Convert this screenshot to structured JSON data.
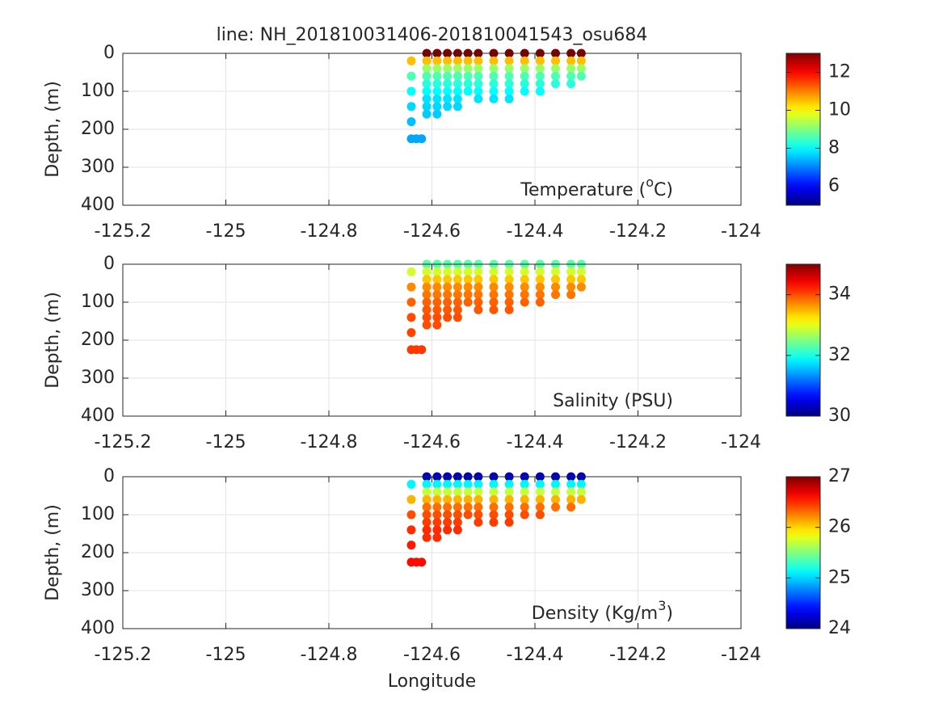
{
  "chart_data": [
    {
      "type": "scatter",
      "title": "line: NH_201810031406-201810041543_osu684",
      "ylabel": "Depth, (m)",
      "annotation": [
        "Temperature (",
        "o",
        "C)"
      ],
      "xlim": [
        -125.2,
        -124
      ],
      "xticks": [
        -125.2,
        -125,
        -124.8,
        -124.6,
        -124.4,
        -124.2,
        -124
      ],
      "ylim": [
        0,
        400
      ],
      "yticks": [
        0,
        100,
        200,
        300,
        400
      ],
      "yreverse": true,
      "grid": true,
      "colormap": "jet",
      "clim": [
        5,
        13
      ],
      "cticks": [
        6,
        8,
        10,
        12
      ],
      "x": [
        -124.64,
        -124.64,
        -124.64,
        -124.64,
        -124.64,
        -124.64,
        -124.63,
        -124.62,
        -124.61,
        -124.61,
        -124.61,
        -124.61,
        -124.61,
        -124.61,
        -124.61,
        -124.61,
        -124.61,
        -124.59,
        -124.59,
        -124.59,
        -124.59,
        -124.59,
        -124.59,
        -124.59,
        -124.59,
        -124.59,
        -124.57,
        -124.57,
        -124.57,
        -124.57,
        -124.57,
        -124.57,
        -124.57,
        -124.57,
        -124.55,
        -124.55,
        -124.55,
        -124.55,
        -124.55,
        -124.55,
        -124.55,
        -124.55,
        -124.53,
        -124.53,
        -124.53,
        -124.53,
        -124.53,
        -124.53,
        -124.51,
        -124.51,
        -124.51,
        -124.51,
        -124.51,
        -124.51,
        -124.51,
        -124.48,
        -124.48,
        -124.48,
        -124.48,
        -124.48,
        -124.48,
        -124.48,
        -124.45,
        -124.45,
        -124.45,
        -124.45,
        -124.45,
        -124.45,
        -124.45,
        -124.42,
        -124.42,
        -124.42,
        -124.42,
        -124.42,
        -124.42,
        -124.39,
        -124.39,
        -124.39,
        -124.39,
        -124.39,
        -124.39,
        -124.36,
        -124.36,
        -124.36,
        -124.36,
        -124.36,
        -124.33,
        -124.33,
        -124.33,
        -124.33,
        -124.33,
        -124.31,
        -124.31,
        -124.31,
        -124.31
      ],
      "y": [
        20,
        60,
        100,
        140,
        180,
        225,
        225,
        225,
        0,
        20,
        40,
        60,
        80,
        100,
        120,
        140,
        160,
        0,
        20,
        40,
        60,
        80,
        100,
        120,
        140,
        160,
        0,
        20,
        40,
        60,
        80,
        100,
        120,
        140,
        0,
        20,
        40,
        60,
        80,
        100,
        120,
        140,
        0,
        20,
        40,
        60,
        80,
        100,
        0,
        20,
        40,
        60,
        80,
        100,
        120,
        0,
        20,
        40,
        60,
        80,
        100,
        120,
        0,
        20,
        40,
        60,
        80,
        100,
        120,
        0,
        20,
        40,
        60,
        80,
        100,
        0,
        20,
        40,
        60,
        80,
        100,
        0,
        20,
        40,
        60,
        80,
        0,
        20,
        40,
        60,
        80,
        0,
        20,
        40,
        60
      ],
      "values": [
        10.5,
        8.6,
        8.0,
        7.7,
        7.5,
        7.3,
        7.3,
        7.3,
        13,
        10.5,
        9.2,
        8.6,
        8.3,
        8.0,
        7.8,
        7.7,
        7.6,
        13,
        10.5,
        9.2,
        8.6,
        8.3,
        8.0,
        7.8,
        7.7,
        7.6,
        13,
        10.5,
        9.2,
        8.6,
        8.3,
        8.0,
        7.8,
        7.7,
        13,
        10.5,
        9.2,
        8.6,
        8.3,
        8.0,
        7.8,
        7.7,
        13,
        10.5,
        9.2,
        8.6,
        8.3,
        8.0,
        13,
        10.5,
        9.2,
        8.6,
        8.3,
        8.0,
        7.8,
        13,
        10.5,
        9.2,
        8.6,
        8.3,
        8.0,
        7.8,
        13,
        10.5,
        9.2,
        8.6,
        8.3,
        8.0,
        7.8,
        13,
        10.5,
        9.2,
        8.6,
        8.3,
        8.0,
        13,
        10.5,
        9.2,
        8.6,
        8.3,
        8.0,
        13,
        10.5,
        9.2,
        8.6,
        8.3,
        13,
        10.5,
        9.2,
        8.6,
        8.3,
        13,
        10.5,
        9.2,
        8.6
      ]
    },
    {
      "type": "scatter",
      "ylabel": "Depth, (m)",
      "annotation": [
        "Salinity (PSU)"
      ],
      "xlim": [
        -125.2,
        -124
      ],
      "xticks": [
        -125.2,
        -125,
        -124.8,
        -124.6,
        -124.4,
        -124.2,
        -124
      ],
      "ylim": [
        0,
        400
      ],
      "yticks": [
        0,
        100,
        200,
        300,
        400
      ],
      "yreverse": true,
      "grid": true,
      "colormap": "jet",
      "clim": [
        30,
        35
      ],
      "cticks": [
        30,
        32,
        34
      ],
      "x": [
        -124.64,
        -124.64,
        -124.64,
        -124.64,
        -124.64,
        -124.64,
        -124.63,
        -124.62,
        -124.61,
        -124.61,
        -124.61,
        -124.61,
        -124.61,
        -124.61,
        -124.61,
        -124.61,
        -124.61,
        -124.59,
        -124.59,
        -124.59,
        -124.59,
        -124.59,
        -124.59,
        -124.59,
        -124.59,
        -124.59,
        -124.57,
        -124.57,
        -124.57,
        -124.57,
        -124.57,
        -124.57,
        -124.57,
        -124.57,
        -124.55,
        -124.55,
        -124.55,
        -124.55,
        -124.55,
        -124.55,
        -124.55,
        -124.55,
        -124.53,
        -124.53,
        -124.53,
        -124.53,
        -124.53,
        -124.53,
        -124.51,
        -124.51,
        -124.51,
        -124.51,
        -124.51,
        -124.51,
        -124.51,
        -124.48,
        -124.48,
        -124.48,
        -124.48,
        -124.48,
        -124.48,
        -124.48,
        -124.45,
        -124.45,
        -124.45,
        -124.45,
        -124.45,
        -124.45,
        -124.45,
        -124.42,
        -124.42,
        -124.42,
        -124.42,
        -124.42,
        -124.42,
        -124.39,
        -124.39,
        -124.39,
        -124.39,
        -124.39,
        -124.39,
        -124.36,
        -124.36,
        -124.36,
        -124.36,
        -124.36,
        -124.33,
        -124.33,
        -124.33,
        -124.33,
        -124.33,
        -124.31,
        -124.31,
        -124.31,
        -124.31
      ],
      "y": [
        20,
        60,
        100,
        140,
        180,
        225,
        225,
        225,
        0,
        20,
        40,
        60,
        80,
        100,
        120,
        140,
        160,
        0,
        20,
        40,
        60,
        80,
        100,
        120,
        140,
        160,
        0,
        20,
        40,
        60,
        80,
        100,
        120,
        140,
        0,
        20,
        40,
        60,
        80,
        100,
        120,
        140,
        0,
        20,
        40,
        60,
        80,
        100,
        0,
        20,
        40,
        60,
        80,
        100,
        120,
        0,
        20,
        40,
        60,
        80,
        100,
        120,
        0,
        20,
        40,
        60,
        80,
        100,
        120,
        0,
        20,
        40,
        60,
        80,
        100,
        0,
        20,
        40,
        60,
        80,
        100,
        0,
        20,
        40,
        60,
        80,
        0,
        20,
        40,
        60,
        80,
        0,
        20,
        40,
        60
      ],
      "values": [
        32.9,
        33.7,
        33.9,
        34.0,
        34.05,
        34.1,
        34.1,
        34.1,
        32.3,
        32.9,
        33.4,
        33.7,
        33.8,
        33.9,
        33.95,
        34.0,
        34.0,
        32.3,
        32.9,
        33.4,
        33.7,
        33.8,
        33.9,
        33.95,
        34.0,
        34.0,
        32.3,
        32.9,
        33.4,
        33.7,
        33.8,
        33.9,
        33.95,
        34.0,
        32.3,
        32.9,
        33.4,
        33.7,
        33.8,
        33.9,
        33.95,
        34.0,
        32.3,
        32.9,
        33.4,
        33.7,
        33.8,
        33.9,
        32.3,
        32.9,
        33.4,
        33.7,
        33.8,
        33.9,
        33.95,
        32.3,
        32.9,
        33.4,
        33.7,
        33.8,
        33.9,
        33.95,
        32.3,
        32.9,
        33.4,
        33.7,
        33.8,
        33.9,
        33.95,
        32.3,
        32.9,
        33.4,
        33.7,
        33.8,
        33.9,
        32.3,
        32.9,
        33.4,
        33.7,
        33.8,
        33.9,
        32.3,
        32.9,
        33.4,
        33.7,
        33.8,
        32.3,
        32.9,
        33.4,
        33.7,
        33.8,
        32.3,
        32.9,
        33.4,
        33.7
      ]
    },
    {
      "type": "scatter",
      "ylabel": "Depth, (m)",
      "xlabel": "Longitude",
      "annotation": [
        "Density (Kg/m",
        "3",
        ")"
      ],
      "xlim": [
        -125.2,
        -124
      ],
      "xticks": [
        -125.2,
        -125,
        -124.8,
        -124.6,
        -124.4,
        -124.2,
        -124
      ],
      "ylim": [
        0,
        400
      ],
      "yticks": [
        0,
        100,
        200,
        300,
        400
      ],
      "yreverse": true,
      "grid": true,
      "colormap": "jet",
      "clim": [
        24,
        27
      ],
      "cticks": [
        24,
        25,
        26,
        27
      ],
      "x": [
        -124.64,
        -124.64,
        -124.64,
        -124.64,
        -124.64,
        -124.64,
        -124.63,
        -124.62,
        -124.61,
        -124.61,
        -124.61,
        -124.61,
        -124.61,
        -124.61,
        -124.61,
        -124.61,
        -124.61,
        -124.59,
        -124.59,
        -124.59,
        -124.59,
        -124.59,
        -124.59,
        -124.59,
        -124.59,
        -124.59,
        -124.57,
        -124.57,
        -124.57,
        -124.57,
        -124.57,
        -124.57,
        -124.57,
        -124.57,
        -124.55,
        -124.55,
        -124.55,
        -124.55,
        -124.55,
        -124.55,
        -124.55,
        -124.55,
        -124.53,
        -124.53,
        -124.53,
        -124.53,
        -124.53,
        -124.53,
        -124.51,
        -124.51,
        -124.51,
        -124.51,
        -124.51,
        -124.51,
        -124.51,
        -124.48,
        -124.48,
        -124.48,
        -124.48,
        -124.48,
        -124.48,
        -124.48,
        -124.45,
        -124.45,
        -124.45,
        -124.45,
        -124.45,
        -124.45,
        -124.45,
        -124.42,
        -124.42,
        -124.42,
        -124.42,
        -124.42,
        -124.42,
        -124.39,
        -124.39,
        -124.39,
        -124.39,
        -124.39,
        -124.39,
        -124.36,
        -124.36,
        -124.36,
        -124.36,
        -124.36,
        -124.33,
        -124.33,
        -124.33,
        -124.33,
        -124.33,
        -124.31,
        -124.31,
        -124.31,
        -124.31
      ],
      "y": [
        20,
        60,
        100,
        140,
        180,
        225,
        225,
        225,
        0,
        20,
        40,
        60,
        80,
        100,
        120,
        140,
        160,
        0,
        20,
        40,
        60,
        80,
        100,
        120,
        140,
        160,
        0,
        20,
        40,
        60,
        80,
        100,
        120,
        140,
        0,
        20,
        40,
        60,
        80,
        100,
        120,
        140,
        0,
        20,
        40,
        60,
        80,
        100,
        0,
        20,
        40,
        60,
        80,
        100,
        120,
        0,
        20,
        40,
        60,
        80,
        100,
        120,
        0,
        20,
        40,
        60,
        80,
        100,
        120,
        0,
        20,
        40,
        60,
        80,
        100,
        0,
        20,
        40,
        60,
        80,
        100,
        0,
        20,
        40,
        60,
        80,
        0,
        20,
        40,
        60,
        80,
        0,
        20,
        40,
        60
      ],
      "values": [
        25.1,
        26.1,
        26.4,
        26.5,
        26.55,
        26.6,
        26.6,
        26.6,
        24.2,
        25.1,
        25.7,
        26.1,
        26.3,
        26.4,
        26.45,
        26.5,
        26.5,
        24.2,
        25.1,
        25.7,
        26.1,
        26.3,
        26.4,
        26.45,
        26.5,
        26.5,
        24.2,
        25.1,
        25.7,
        26.1,
        26.3,
        26.4,
        26.45,
        26.5,
        24.2,
        25.1,
        25.7,
        26.1,
        26.3,
        26.4,
        26.45,
        26.5,
        24.2,
        25.1,
        25.7,
        26.1,
        26.3,
        26.4,
        24.2,
        25.1,
        25.7,
        26.1,
        26.3,
        26.4,
        26.45,
        24.2,
        25.1,
        25.7,
        26.1,
        26.3,
        26.4,
        26.45,
        24.2,
        25.1,
        25.7,
        26.1,
        26.3,
        26.4,
        26.45,
        24.2,
        25.1,
        25.7,
        26.1,
        26.3,
        26.4,
        24.2,
        25.1,
        25.7,
        26.1,
        26.3,
        26.4,
        24.2,
        25.1,
        25.7,
        26.1,
        26.3,
        24.2,
        25.1,
        25.7,
        26.1,
        26.3,
        24.2,
        25.1,
        25.7,
        26.1
      ]
    }
  ]
}
